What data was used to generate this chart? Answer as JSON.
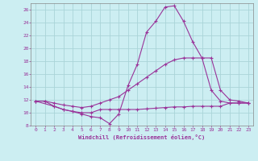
{
  "xlabel": "Windchill (Refroidissement éolien,°C)",
  "background_color": "#cceef2",
  "grid_color": "#aad4d8",
  "line_color": "#993399",
  "xlim": [
    -0.5,
    23.5
  ],
  "ylim": [
    8,
    27
  ],
  "xticks": [
    0,
    1,
    2,
    3,
    4,
    5,
    6,
    7,
    8,
    9,
    10,
    11,
    12,
    13,
    14,
    15,
    16,
    17,
    18,
    19,
    20,
    21,
    22,
    23
  ],
  "yticks": [
    8,
    10,
    12,
    14,
    16,
    18,
    20,
    22,
    24,
    26
  ],
  "curve1_x": [
    0,
    1,
    2,
    3,
    4,
    5,
    6,
    7,
    8,
    9,
    10,
    11,
    12,
    13,
    14,
    15,
    16,
    17,
    18,
    19,
    20,
    21,
    22,
    23
  ],
  "curve1_y": [
    11.8,
    11.8,
    11.0,
    10.5,
    10.2,
    9.8,
    9.4,
    9.2,
    8.3,
    9.8,
    14.2,
    17.5,
    22.5,
    24.2,
    26.4,
    26.6,
    24.2,
    21.0,
    18.5,
    13.5,
    11.8,
    11.5,
    11.5,
    11.5
  ],
  "curve2_x": [
    0,
    2,
    3,
    4,
    5,
    6,
    7,
    8,
    9,
    10,
    11,
    12,
    13,
    14,
    15,
    16,
    17,
    18,
    19,
    20,
    21,
    22,
    23
  ],
  "curve2_y": [
    11.8,
    11.0,
    10.5,
    10.2,
    10.0,
    10.0,
    10.5,
    10.5,
    10.5,
    10.5,
    10.5,
    10.6,
    10.7,
    10.8,
    10.9,
    10.9,
    11.0,
    11.0,
    11.0,
    11.0,
    11.5,
    11.5,
    11.5
  ],
  "curve3_x": [
    0,
    1,
    2,
    3,
    4,
    5,
    6,
    7,
    8,
    9,
    10,
    11,
    12,
    13,
    14,
    15,
    16,
    17,
    18,
    19,
    20,
    21,
    22,
    23
  ],
  "curve3_y": [
    11.8,
    11.8,
    11.5,
    11.2,
    11.0,
    10.8,
    11.0,
    11.5,
    12.0,
    12.5,
    13.5,
    14.5,
    15.5,
    16.5,
    17.5,
    18.2,
    18.5,
    18.5,
    18.5,
    18.5,
    13.5,
    12.0,
    11.8,
    11.5
  ]
}
